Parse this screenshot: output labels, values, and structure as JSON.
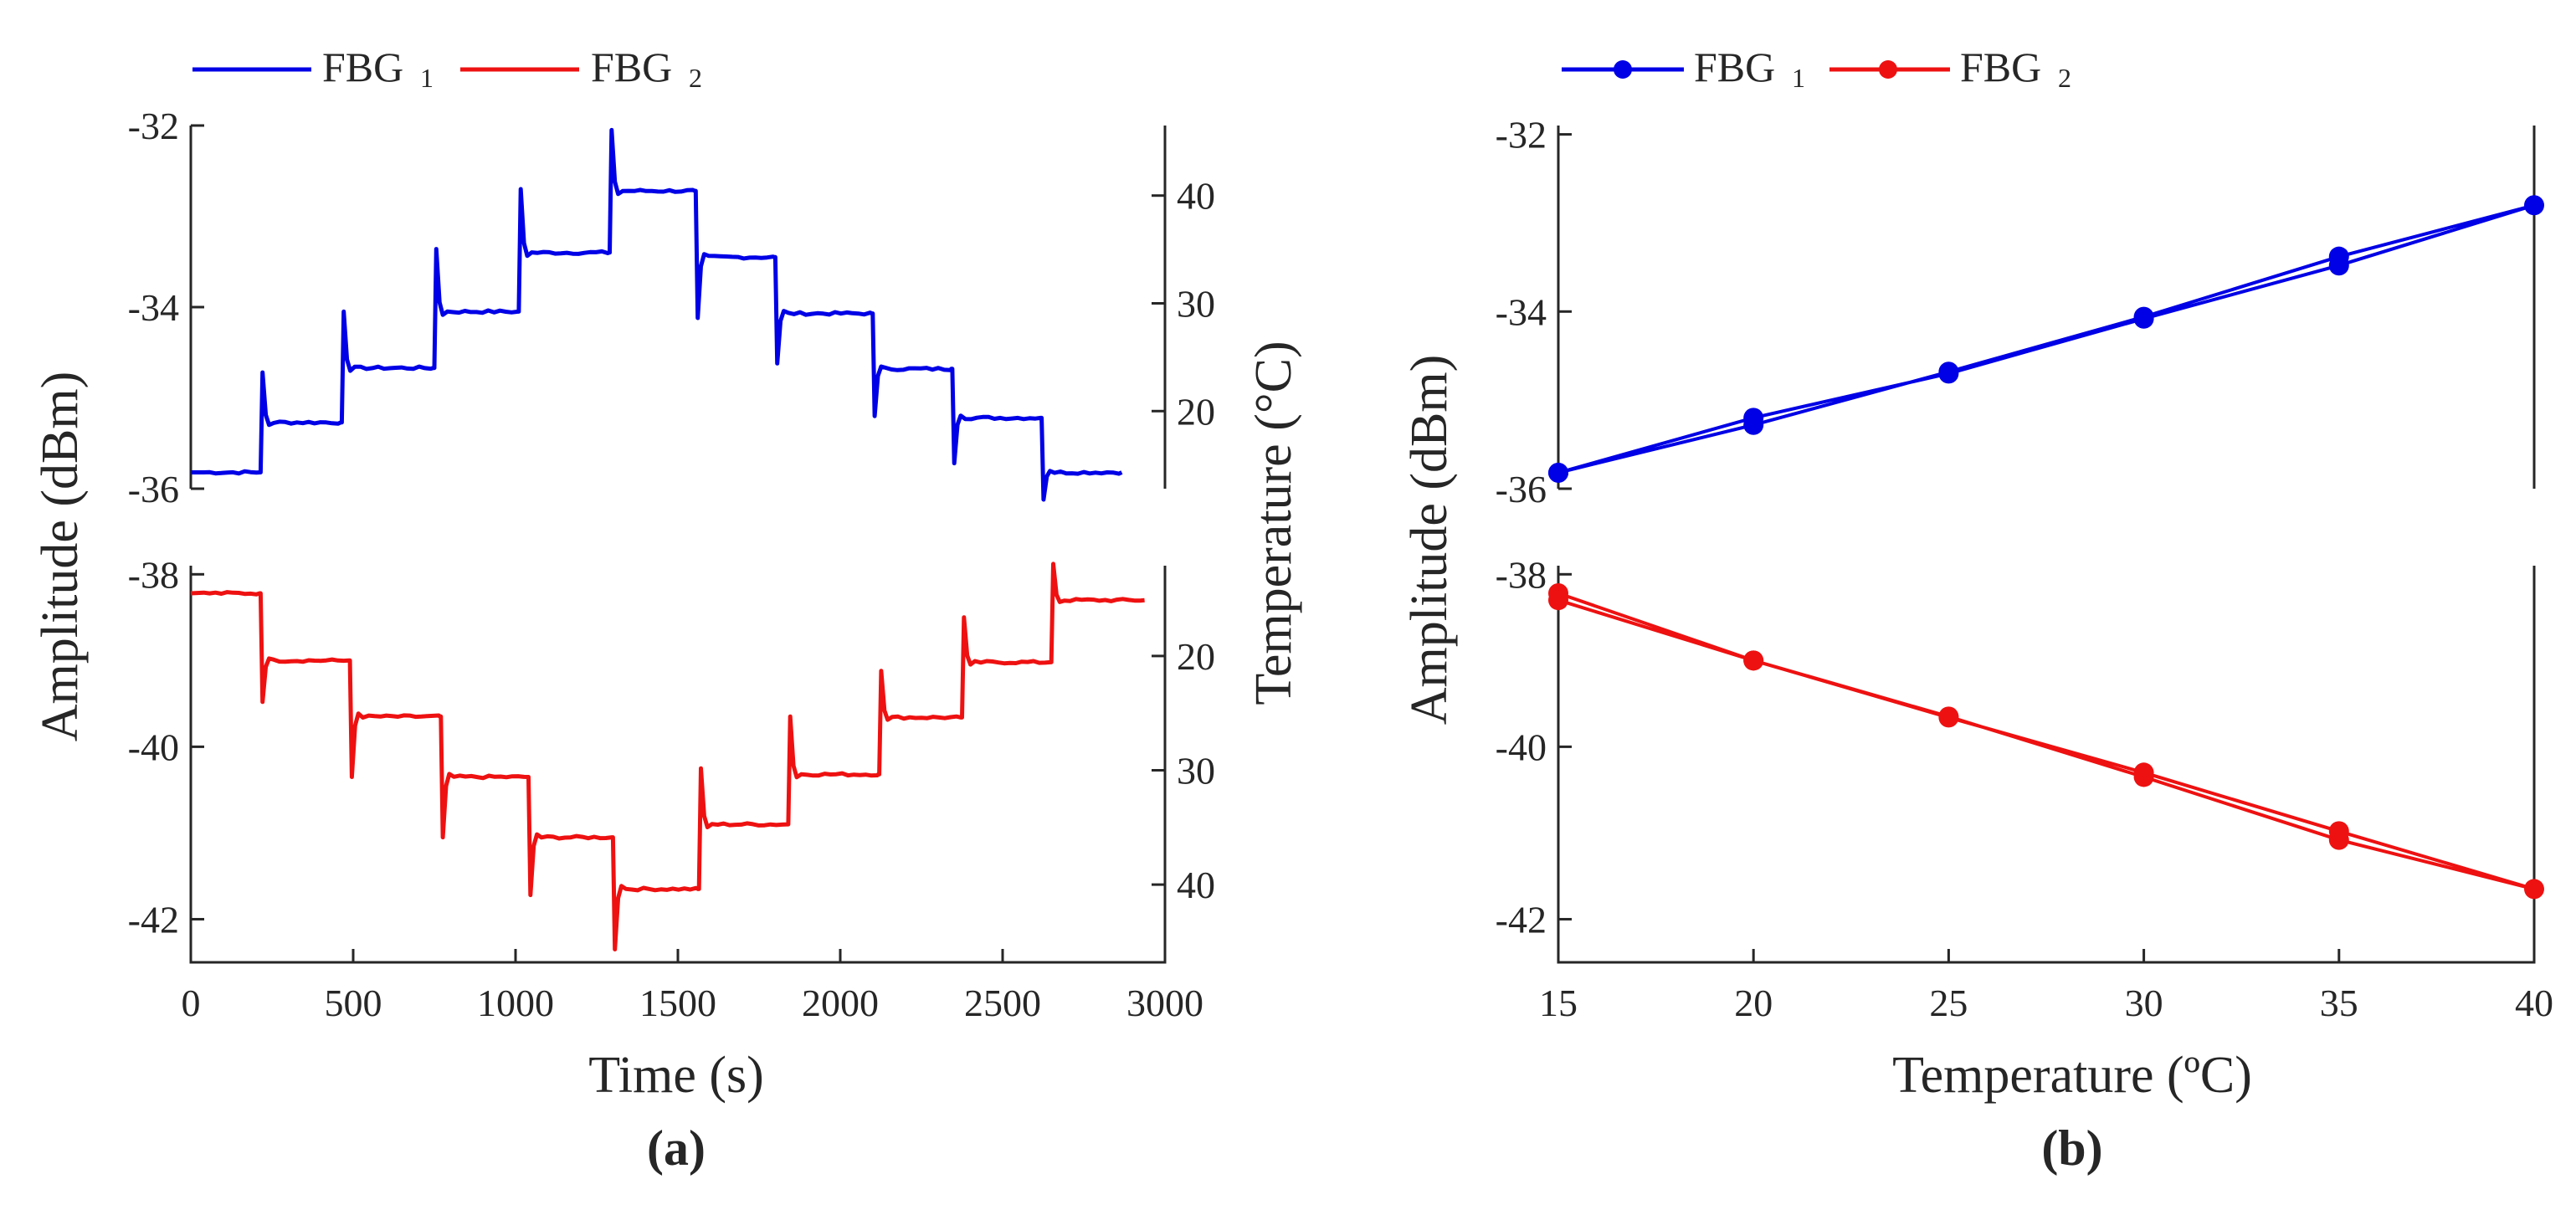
{
  "legend_a": {
    "fbg1": "FBG",
    "fbg1_sub": "1",
    "fbg2": "FBG",
    "fbg2_sub": "2"
  },
  "legend_b": {
    "fbg1": "FBG",
    "fbg1_sub": "1",
    "fbg2": "FBG",
    "fbg2_sub": "2"
  },
  "panel_labels": {
    "a": "(a)",
    "b": "(b)"
  },
  "colors": {
    "fbg1": "#0000e6",
    "fbg2": "#ee1111",
    "axis": "#262626"
  },
  "chart_data": [
    {
      "id": "a",
      "type": "line",
      "xlabel": "Time (s)",
      "ylabel": "Amplitude (dBm)",
      "ylabel_right": "Temperature (°C)",
      "xlim": [
        0,
        3000
      ],
      "xticks": [
        0,
        500,
        1000,
        1500,
        2000,
        2500,
        3000
      ],
      "series": [
        {
          "name": "FBG1",
          "ylim": [
            -36,
            -32
          ],
          "yticks": [
            -36,
            -34,
            -32
          ],
          "right_ylim": [
            12.8,
            46.5
          ],
          "right_yticks": [
            20,
            30,
            40
          ],
          "steps": [
            {
              "t": 0,
              "v": -35.82
            },
            {
              "t": 215,
              "v": -35.27,
              "spike": -34.72
            },
            {
              "t": 465,
              "v": -34.67,
              "spike": -34.05
            },
            {
              "t": 750,
              "v": -34.05,
              "spike": -33.36
            },
            {
              "t": 1010,
              "v": -33.4,
              "spike": -32.7
            },
            {
              "t": 1290,
              "v": -32.72,
              "spike": -32.05
            },
            {
              "t": 1555,
              "v": -33.45,
              "spike": -34.12
            },
            {
              "t": 1800,
              "v": -34.07,
              "spike": -34.62
            },
            {
              "t": 2100,
              "v": -34.68,
              "spike": -35.2
            },
            {
              "t": 2345,
              "v": -35.22,
              "spike": -35.72
            },
            {
              "t": 2620,
              "v": -35.82,
              "spike": -36.12
            }
          ],
          "end_t": 2870
        },
        {
          "name": "FBG2",
          "ylim": [
            -42.5,
            -37.9
          ],
          "yticks": [
            -42,
            -40,
            -38
          ],
          "right_ylim": [
            12.1,
            46.8
          ],
          "right_yticks": [
            20,
            30,
            40
          ],
          "steps": [
            {
              "t": 0,
              "v": -38.22
            },
            {
              "t": 215,
              "v": -39.0,
              "spike": -39.48
            },
            {
              "t": 490,
              "v": -39.65,
              "spike": -40.35
            },
            {
              "t": 770,
              "v": -40.35,
              "spike": -41.05
            },
            {
              "t": 1040,
              "v": -41.05,
              "spike": -41.72
            },
            {
              "t": 1300,
              "v": -41.65,
              "spike": -42.35
            },
            {
              "t": 1565,
              "v": -40.9,
              "spike": -40.25
            },
            {
              "t": 1840,
              "v": -40.32,
              "spike": -39.65
            },
            {
              "t": 2120,
              "v": -39.66,
              "spike": -39.12
            },
            {
              "t": 2375,
              "v": -39.02,
              "spike": -38.5
            },
            {
              "t": 2650,
              "v": -38.3,
              "spike": -37.88
            }
          ],
          "end_t": 2940
        }
      ]
    },
    {
      "id": "b",
      "type": "line",
      "xlabel": "Temperature (ºC)",
      "ylabel": "Amplitude (dBm)",
      "xlim": [
        15,
        40
      ],
      "xticks": [
        15,
        20,
        25,
        30,
        35,
        40
      ],
      "series": [
        {
          "name": "FBG1",
          "ylim": [
            -36,
            -31.9
          ],
          "yticks": [
            -36,
            -34,
            -32
          ],
          "x": [
            15,
            20,
            25,
            30,
            35,
            40,
            35,
            30,
            25,
            20,
            15
          ],
          "y": [
            -35.82,
            -35.28,
            -34.68,
            -34.06,
            -33.38,
            -32.8,
            -33.48,
            -34.08,
            -34.7,
            -35.2,
            -35.82
          ]
        },
        {
          "name": "FBG2",
          "ylim": [
            -42.5,
            -37.9
          ],
          "yticks": [
            -42,
            -40,
            -38
          ],
          "x": [
            15,
            20,
            25,
            30,
            35,
            40,
            35,
            30,
            25,
            20,
            15
          ],
          "y": [
            -38.22,
            -39.0,
            -39.65,
            -40.35,
            -41.08,
            -41.65,
            -40.98,
            -40.3,
            -39.66,
            -39.0,
            -38.3
          ]
        }
      ]
    }
  ]
}
